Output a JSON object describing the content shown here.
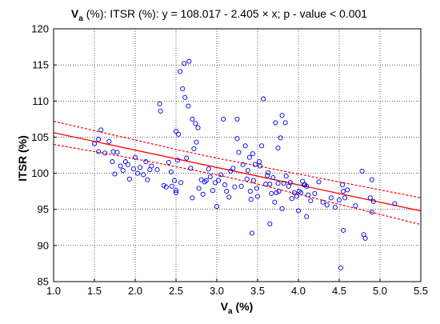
{
  "chart_data": {
    "type": "scatter",
    "title": {
      "prefix_main": "V",
      "prefix_sub": "a",
      "rest": " (%): ITSR (%):   y = 108.017 - 2.405 × x;   p - value < 0.001"
    },
    "xlabel": {
      "main": "V",
      "sub": "a",
      "rest": " (%)"
    },
    "ylabel": "ITSR (%)",
    "xlim": [
      1.0,
      5.5
    ],
    "ylim": [
      85,
      120
    ],
    "x_ticks": [
      1.0,
      1.5,
      2.0,
      2.5,
      3.0,
      3.5,
      4.0,
      4.5,
      5.0,
      5.5
    ],
    "y_ticks": [
      85,
      90,
      95,
      100,
      105,
      110,
      115,
      120
    ],
    "x_tick_labels": [
      "1.0",
      "1.5",
      "2.0",
      "2.5",
      "3.0",
      "3.5",
      "4.0",
      "4.5",
      "5.0",
      "5.5"
    ],
    "y_tick_labels": [
      "85",
      "90",
      "95",
      "100",
      "105",
      "110",
      "115",
      "120"
    ],
    "grid": true,
    "marker_color": "#0000e0",
    "fit_color": "#ff0000",
    "fit": {
      "intercept": 108.017,
      "slope": -2.405
    },
    "confidence_band": {
      "upper": [
        [
          1.0,
          107.2
        ],
        [
          1.5,
          105.9
        ],
        [
          2.0,
          104.6
        ],
        [
          2.5,
          103.3
        ],
        [
          3.0,
          102.1
        ],
        [
          3.5,
          101.0
        ],
        [
          4.0,
          99.9
        ],
        [
          4.5,
          98.8
        ],
        [
          5.0,
          97.7
        ],
        [
          5.5,
          96.6
        ]
      ],
      "lower": [
        [
          1.0,
          104.0
        ],
        [
          1.5,
          103.0
        ],
        [
          2.0,
          102.0
        ],
        [
          2.5,
          100.9
        ],
        [
          3.0,
          99.8
        ],
        [
          3.5,
          98.5
        ],
        [
          4.0,
          97.1
        ],
        [
          4.5,
          95.7
        ],
        [
          5.0,
          94.3
        ],
        [
          5.5,
          92.9
        ]
      ]
    },
    "points": [
      [
        1.5,
        104.1
      ],
      [
        1.55,
        104.7
      ],
      [
        1.58,
        106.0
      ],
      [
        1.55,
        103.0
      ],
      [
        1.63,
        102.8
      ],
      [
        1.68,
        104.4
      ],
      [
        1.73,
        103.0
      ],
      [
        1.78,
        102.9
      ],
      [
        1.72,
        101.6
      ],
      [
        1.75,
        99.9
      ],
      [
        1.82,
        101.0
      ],
      [
        1.85,
        100.4
      ],
      [
        1.88,
        101.6
      ],
      [
        1.91,
        101.2
      ],
      [
        1.93,
        99.2
      ],
      [
        1.98,
        100.6
      ],
      [
        2.0,
        102.2
      ],
      [
        2.03,
        100.0
      ],
      [
        2.06,
        100.8
      ],
      [
        2.1,
        99.8
      ],
      [
        2.13,
        101.6
      ],
      [
        2.15,
        99.1
      ],
      [
        2.18,
        100.5
      ],
      [
        2.2,
        101.0
      ],
      [
        2.27,
        100.5
      ],
      [
        2.3,
        109.6
      ],
      [
        2.31,
        108.6
      ],
      [
        2.35,
        98.3
      ],
      [
        2.38,
        98.1
      ],
      [
        2.41,
        101.5
      ],
      [
        2.44,
        100.2
      ],
      [
        2.45,
        98.2
      ],
      [
        2.48,
        99.0
      ],
      [
        2.5,
        97.6
      ],
      [
        2.5,
        105.8
      ],
      [
        2.5,
        97.3
      ],
      [
        2.52,
        101.8
      ],
      [
        2.53,
        105.4
      ],
      [
        2.55,
        114.1
      ],
      [
        2.56,
        98.7
      ],
      [
        2.58,
        111.7
      ],
      [
        2.6,
        115.2
      ],
      [
        2.61,
        110.5
      ],
      [
        2.63,
        102.1
      ],
      [
        2.65,
        109.3
      ],
      [
        2.66,
        115.5
      ],
      [
        2.68,
        100.7
      ],
      [
        2.7,
        107.5
      ],
      [
        2.7,
        96.6
      ],
      [
        2.72,
        103.4
      ],
      [
        2.74,
        106.9
      ],
      [
        2.75,
        104.3
      ],
      [
        2.77,
        106.3
      ],
      [
        2.78,
        97.9
      ],
      [
        2.81,
        99.1
      ],
      [
        2.83,
        97.1
      ],
      [
        2.85,
        98.8
      ],
      [
        2.87,
        99.0
      ],
      [
        2.9,
        100.6
      ],
      [
        2.92,
        99.5
      ],
      [
        2.95,
        97.6
      ],
      [
        2.98,
        98.7
      ],
      [
        3.0,
        95.4
      ],
      [
        3.02,
        99.0
      ],
      [
        3.05,
        99.8
      ],
      [
        3.08,
        107.5
      ],
      [
        3.1,
        98.4
      ],
      [
        3.12,
        97.5
      ],
      [
        3.15,
        96.7
      ],
      [
        3.17,
        100.3
      ],
      [
        3.2,
        100.7
      ],
      [
        3.22,
        98.1
      ],
      [
        3.25,
        104.8
      ],
      [
        3.25,
        107.5
      ],
      [
        3.27,
        102.9
      ],
      [
        3.3,
        98.2
      ],
      [
        3.32,
        101.2
      ],
      [
        3.35,
        103.8
      ],
      [
        3.37,
        99.2
      ],
      [
        3.38,
        100.4
      ],
      [
        3.4,
        102.2
      ],
      [
        3.41,
        97.5
      ],
      [
        3.42,
        96.4
      ],
      [
        3.43,
        91.7
      ],
      [
        3.44,
        102.7
      ],
      [
        3.45,
        99.0
      ],
      [
        3.47,
        101.2
      ],
      [
        3.49,
        97.9
      ],
      [
        3.5,
        96.8
      ],
      [
        3.52,
        101.6
      ],
      [
        3.53,
        101.0
      ],
      [
        3.55,
        103.8
      ],
      [
        3.57,
        110.3
      ],
      [
        3.6,
        98.5
      ],
      [
        3.62,
        99.7
      ],
      [
        3.63,
        100.1
      ],
      [
        3.65,
        93.0
      ],
      [
        3.65,
        98.5
      ],
      [
        3.67,
        97.2
      ],
      [
        3.69,
        99.4
      ],
      [
        3.71,
        96.0
      ],
      [
        3.72,
        107.0
      ],
      [
        3.73,
        97.3
      ],
      [
        3.75,
        98.6
      ],
      [
        3.75,
        103.5
      ],
      [
        3.76,
        97.5
      ],
      [
        3.78,
        104.9
      ],
      [
        3.8,
        95.1
      ],
      [
        3.8,
        108.0
      ],
      [
        3.82,
        98.6
      ],
      [
        3.84,
        107.0
      ],
      [
        3.85,
        99.6
      ],
      [
        3.88,
        98.2
      ],
      [
        3.9,
        98.7
      ],
      [
        3.92,
        96.5
      ],
      [
        3.95,
        97.3
      ],
      [
        3.98,
        96.8
      ],
      [
        4.0,
        94.8
      ],
      [
        4.01,
        97.5
      ],
      [
        4.03,
        97.3
      ],
      [
        4.05,
        98.9
      ],
      [
        4.07,
        98.4
      ],
      [
        4.08,
        98.4
      ],
      [
        4.1,
        94.0
      ],
      [
        4.1,
        98.2
      ],
      [
        4.12,
        97.0
      ],
      [
        4.15,
        96.2
      ],
      [
        4.2,
        97.2
      ],
      [
        4.25,
        98.8
      ],
      [
        4.3,
        96.0
      ],
      [
        4.35,
        95.6
      ],
      [
        4.4,
        96.6
      ],
      [
        4.45,
        95.3
      ],
      [
        4.5,
        96.3
      ],
      [
        4.52,
        86.9
      ],
      [
        4.54,
        98.4
      ],
      [
        4.55,
        92.1
      ],
      [
        4.55,
        97.5
      ],
      [
        4.57,
        96.6
      ],
      [
        4.6,
        97.7
      ],
      [
        4.7,
        95.5
      ],
      [
        4.78,
        100.3
      ],
      [
        4.8,
        91.5
      ],
      [
        4.82,
        91.0
      ],
      [
        4.88,
        96.6
      ],
      [
        4.9,
        99.1
      ],
      [
        4.9,
        94.6
      ],
      [
        4.92,
        96.1
      ],
      [
        5.18,
        95.8
      ]
    ]
  }
}
